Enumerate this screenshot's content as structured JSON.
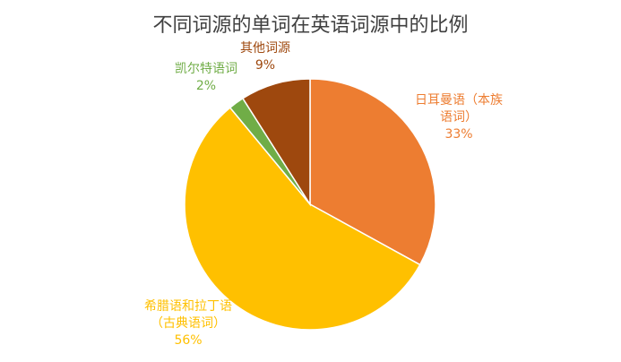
{
  "chart_data": {
    "type": "pie",
    "title": "不同词源的单词在英语词源中的比例",
    "categories": [
      "日耳曼语（本族语词）",
      "希腊语和拉丁语（古典语词）",
      "凯尔特语词",
      "其他词源"
    ],
    "values": [
      33,
      56,
      2,
      9
    ],
    "value_labels": [
      "33%",
      "56%",
      "2%",
      "9%"
    ],
    "colors": [
      "#ED7D31",
      "#FFC000",
      "#70AD47",
      "#9E480E"
    ]
  }
}
